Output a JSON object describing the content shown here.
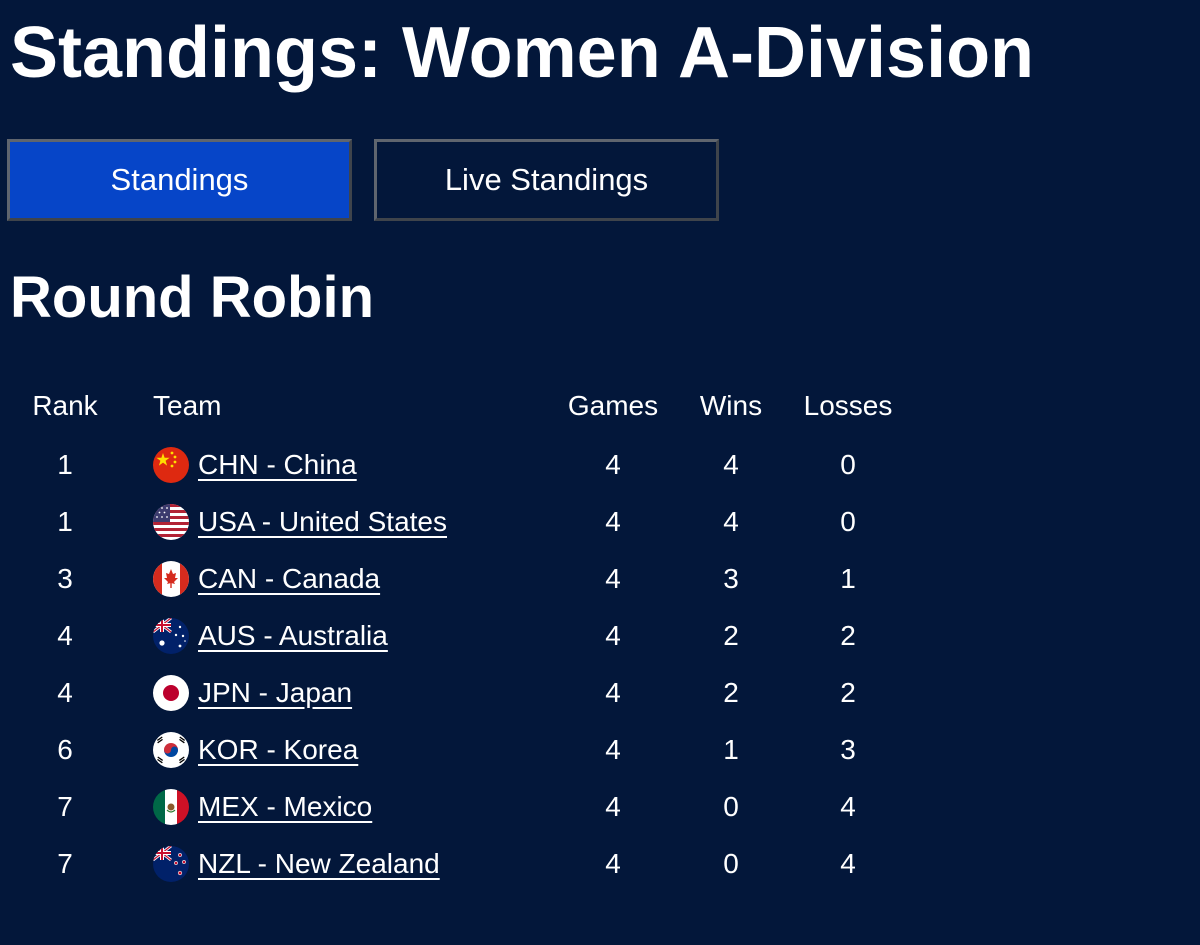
{
  "page": {
    "title": "Standings: Women A-Division"
  },
  "tabs": [
    {
      "label": "Standings",
      "active": true
    },
    {
      "label": "Live Standings",
      "active": false
    }
  ],
  "section": {
    "title": "Round Robin"
  },
  "table": {
    "headers": {
      "rank": "Rank",
      "team": "Team",
      "games": "Games",
      "wins": "Wins",
      "losses": "Losses"
    },
    "rows": [
      {
        "rank": "1",
        "team": "CHN - China",
        "flag": "china-flag-icon",
        "games": "4",
        "wins": "4",
        "losses": "0"
      },
      {
        "rank": "1",
        "team": "USA - United States",
        "flag": "usa-flag-icon",
        "games": "4",
        "wins": "4",
        "losses": "0"
      },
      {
        "rank": "3",
        "team": "CAN - Canada",
        "flag": "canada-flag-icon",
        "games": "4",
        "wins": "3",
        "losses": "1"
      },
      {
        "rank": "4",
        "team": "AUS - Australia",
        "flag": "australia-flag-icon",
        "games": "4",
        "wins": "2",
        "losses": "2"
      },
      {
        "rank": "4",
        "team": "JPN - Japan",
        "flag": "japan-flag-icon",
        "games": "4",
        "wins": "2",
        "losses": "2"
      },
      {
        "rank": "6",
        "team": "KOR - Korea",
        "flag": "korea-flag-icon",
        "games": "4",
        "wins": "1",
        "losses": "3"
      },
      {
        "rank": "7",
        "team": "MEX - Mexico",
        "flag": "mexico-flag-icon",
        "games": "4",
        "wins": "0",
        "losses": "4"
      },
      {
        "rank": "7",
        "team": "NZL - New Zealand",
        "flag": "new-zealand-flag-icon",
        "games": "4",
        "wins": "0",
        "losses": "4"
      }
    ]
  },
  "colors": {
    "background": "#03173a",
    "active_tab": "#0645c8",
    "text": "#ffffff"
  }
}
